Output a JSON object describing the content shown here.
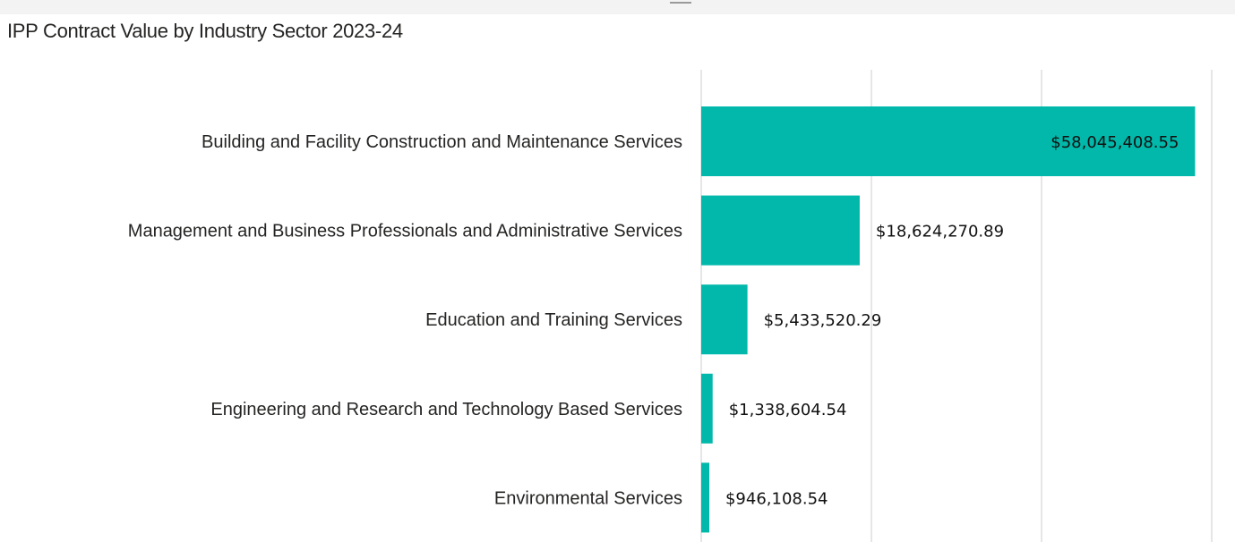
{
  "header": {
    "title": "IPP Contract Value by Industry Sector 2023-24"
  },
  "chart_data": {
    "type": "bar",
    "orientation": "horizontal",
    "title": "IPP Contract Value by Industry Sector 2023-24",
    "categories": [
      "Building and Facility Construction and Maintenance Services",
      "Management and Business Professionals and Administrative Services",
      "Education and Training Services",
      "Engineering and Research and Technology Based Services",
      "Environmental Services"
    ],
    "values": [
      58045408.55,
      18624270.89,
      5433520.29,
      1338604.54,
      946108.54
    ],
    "data_labels": [
      "$58,045,408.55",
      "$18,624,270.89",
      "$5,433,520.29",
      "$1,338,604.54",
      "$946,108.54"
    ],
    "xlim": [
      0,
      60000000
    ],
    "gridlines": [
      0,
      20000000,
      40000000,
      60000000
    ],
    "grid": true,
    "axis_tick_labels_shown": false,
    "bar_color": "#01B8AA",
    "grid_color": "#e6e6e6"
  }
}
